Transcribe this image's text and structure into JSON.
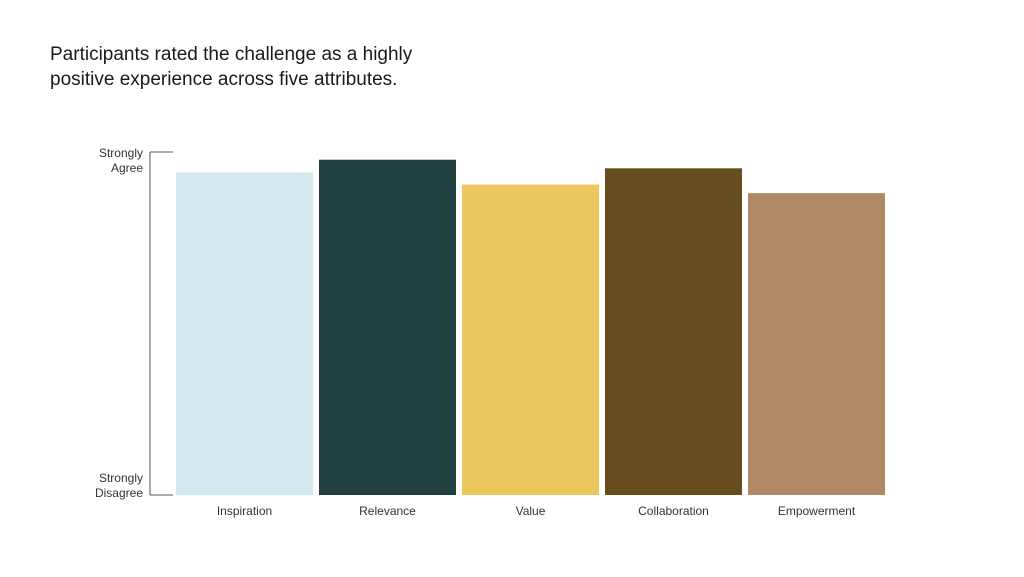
{
  "chart_data": {
    "type": "bar",
    "title": "Participants rated the challenge as a highly positive experience across five attributes.",
    "categories": [
      "Inspiration",
      "Relevance",
      "Value",
      "Collaboration",
      "Empowerment"
    ],
    "values": [
      4.76,
      4.91,
      4.62,
      4.81,
      4.52
    ],
    "colors": [
      "#d2eaee",
      "#213e3e",
      "#ecc75e",
      "#654d1e",
      "#b08864"
    ],
    "ylim": [
      1,
      5
    ],
    "yticks": [
      {
        "value": 1,
        "label": "Strongly Disagree"
      },
      {
        "value": 5,
        "label": "Strongly Agree"
      }
    ]
  }
}
